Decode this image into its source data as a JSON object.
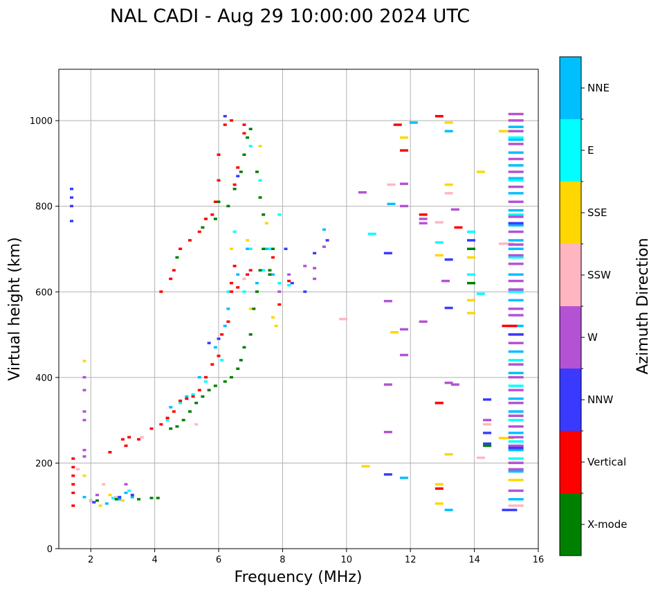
{
  "chart_data": {
    "type": "scatter",
    "title": "NAL CADI - Aug 29 10:00:00 2024 UTC",
    "xlabel": "Frequency (MHz)",
    "ylabel": "Virtual height (km)",
    "xlim": [
      1,
      16
    ],
    "ylim": [
      0,
      1120
    ],
    "xticks": [
      2,
      4,
      6,
      8,
      10,
      12,
      14,
      16
    ],
    "yticks": [
      0,
      200,
      400,
      600,
      800,
      1000
    ],
    "grid": true,
    "colorbar": {
      "label": "Azimuth Direction",
      "categories": [
        {
          "name": "X-mode",
          "color": "#008000"
        },
        {
          "name": "Vertical",
          "color": "#ff0000"
        },
        {
          "name": "NNW",
          "color": "#3a3aff"
        },
        {
          "name": "W",
          "color": "#b452d4"
        },
        {
          "name": "SSW",
          "color": "#ffb6c1"
        },
        {
          "name": "SSE",
          "color": "#ffd700"
        },
        {
          "name": "E",
          "color": "#00ffff"
        },
        {
          "name": "NNE",
          "color": "#00bfff"
        }
      ]
    },
    "series": [
      {
        "name": "NNE",
        "points": [
          [
            1.8,
            120
          ],
          [
            2.5,
            105
          ],
          [
            2.9,
            115
          ],
          [
            3.1,
            130
          ],
          [
            3.3,
            120
          ],
          [
            4.5,
            330
          ],
          [
            5.0,
            355
          ],
          [
            5.4,
            400
          ],
          [
            5.9,
            470
          ],
          [
            6.2,
            520
          ],
          [
            6.3,
            560
          ],
          [
            6.6,
            640
          ],
          [
            6.9,
            700
          ],
          [
            7.2,
            620
          ],
          [
            7.5,
            700
          ],
          [
            7.7,
            640
          ],
          [
            9.3,
            745
          ],
          [
            11.4,
            805
          ],
          [
            11.8,
            165
          ],
          [
            12.1,
            995
          ],
          [
            13.2,
            975
          ],
          [
            13.2,
            90
          ],
          [
            15.3,
            985
          ],
          [
            15.3,
            955
          ],
          [
            15.3,
            925
          ],
          [
            15.3,
            895
          ],
          [
            15.3,
            865
          ],
          [
            15.3,
            830
          ],
          [
            15.3,
            790
          ],
          [
            15.3,
            755
          ],
          [
            15.3,
            720
          ],
          [
            15.3,
            700
          ],
          [
            15.3,
            640
          ],
          [
            15.3,
            580
          ],
          [
            15.3,
            520
          ],
          [
            15.3,
            460
          ],
          [
            15.3,
            410
          ],
          [
            15.3,
            350
          ],
          [
            15.3,
            320
          ],
          [
            15.3,
            270
          ],
          [
            15.3,
            230
          ],
          [
            15.3,
            180
          ],
          [
            15.3,
            115
          ]
        ]
      },
      {
        "name": "E",
        "points": [
          [
            2.0,
            112
          ],
          [
            2.7,
            118
          ],
          [
            3.2,
            135
          ],
          [
            4.4,
            300
          ],
          [
            4.8,
            340
          ],
          [
            5.2,
            360
          ],
          [
            5.6,
            390
          ],
          [
            6.1,
            440
          ],
          [
            6.3,
            600
          ],
          [
            6.5,
            740
          ],
          [
            6.8,
            600
          ],
          [
            7.0,
            700
          ],
          [
            7.0,
            940
          ],
          [
            7.3,
            860
          ],
          [
            7.4,
            650
          ],
          [
            7.6,
            700
          ],
          [
            7.9,
            620
          ],
          [
            7.9,
            780
          ],
          [
            8.2,
            615
          ],
          [
            10.8,
            735
          ],
          [
            12.9,
            715
          ],
          [
            14.2,
            595
          ],
          [
            15.3,
            960
          ],
          [
            15.3,
            860
          ],
          [
            15.3,
            780
          ],
          [
            15.3,
            680
          ],
          [
            15.3,
            600
          ],
          [
            15.3,
            500
          ],
          [
            15.3,
            440
          ],
          [
            15.3,
            380
          ],
          [
            15.3,
            300
          ],
          [
            15.3,
            250
          ],
          [
            15.3,
            210
          ],
          [
            13.9,
            740
          ],
          [
            13.9,
            640
          ]
        ]
      },
      {
        "name": "SSE",
        "points": [
          [
            1.8,
            438
          ],
          [
            1.8,
            170
          ],
          [
            2.3,
            100
          ],
          [
            2.6,
            125
          ],
          [
            3.0,
            112
          ],
          [
            6.4,
            700
          ],
          [
            6.9,
            720
          ],
          [
            7.0,
            560
          ],
          [
            7.3,
            940
          ],
          [
            7.5,
            760
          ],
          [
            7.7,
            540
          ],
          [
            7.8,
            520
          ],
          [
            10.6,
            192
          ],
          [
            11.5,
            505
          ],
          [
            11.8,
            960
          ],
          [
            12.9,
            685
          ],
          [
            12.9,
            105
          ],
          [
            12.9,
            150
          ],
          [
            13.2,
            995
          ],
          [
            13.2,
            850
          ],
          [
            13.2,
            220
          ],
          [
            13.9,
            580
          ],
          [
            13.9,
            550
          ],
          [
            13.9,
            680
          ],
          [
            14.2,
            880
          ],
          [
            15.0,
            975
          ],
          [
            15.0,
            258
          ],
          [
            15.3,
            160
          ]
        ]
      },
      {
        "name": "SSW",
        "points": [
          [
            1.6,
            185
          ],
          [
            2.0,
            110
          ],
          [
            2.4,
            150
          ],
          [
            2.8,
            120
          ],
          [
            3.6,
            260
          ],
          [
            5.3,
            290
          ],
          [
            6.8,
            630
          ],
          [
            7.2,
            600
          ],
          [
            9.9,
            536
          ],
          [
            11.4,
            850
          ],
          [
            12.9,
            762
          ],
          [
            13.2,
            830
          ],
          [
            14.2,
            212
          ],
          [
            14.4,
            290
          ],
          [
            15.0,
            712
          ],
          [
            15.3,
            100
          ]
        ]
      },
      {
        "name": "W",
        "points": [
          [
            1.8,
            400
          ],
          [
            1.8,
            370
          ],
          [
            1.8,
            320
          ],
          [
            1.8,
            300
          ],
          [
            1.8,
            230
          ],
          [
            1.8,
            215
          ],
          [
            2.2,
            125
          ],
          [
            3.1,
            150
          ],
          [
            7.9,
            600
          ],
          [
            8.2,
            640
          ],
          [
            8.7,
            660
          ],
          [
            9.0,
            655
          ],
          [
            9.0,
            630
          ],
          [
            9.3,
            705
          ],
          [
            10.5,
            832
          ],
          [
            11.3,
            578
          ],
          [
            11.3,
            383
          ],
          [
            11.3,
            272
          ],
          [
            11.8,
            852
          ],
          [
            11.8,
            800
          ],
          [
            11.8,
            512
          ],
          [
            11.8,
            452
          ],
          [
            12.4,
            530
          ],
          [
            12.4,
            770
          ],
          [
            12.4,
            760
          ],
          [
            13.1,
            625
          ],
          [
            13.2,
            387
          ],
          [
            13.4,
            383
          ],
          [
            13.4,
            792
          ],
          [
            14.4,
            300
          ],
          [
            15.3,
            1015
          ],
          [
            15.3,
            1000
          ],
          [
            15.3,
            975
          ],
          [
            15.3,
            945
          ],
          [
            15.3,
            910
          ],
          [
            15.3,
            880
          ],
          [
            15.3,
            845
          ],
          [
            15.3,
            810
          ],
          [
            15.3,
            775
          ],
          [
            15.3,
            740
          ],
          [
            15.3,
            710
          ],
          [
            15.3,
            685
          ],
          [
            15.3,
            665
          ],
          [
            15.3,
            625
          ],
          [
            15.3,
            605
          ],
          [
            15.3,
            560
          ],
          [
            15.3,
            545
          ],
          [
            15.3,
            500
          ],
          [
            15.3,
            480
          ],
          [
            15.3,
            430
          ],
          [
            15.3,
            400
          ],
          [
            15.3,
            370
          ],
          [
            15.3,
            340
          ],
          [
            15.3,
            310
          ],
          [
            15.3,
            285
          ],
          [
            15.3,
            260
          ],
          [
            15.3,
            240
          ],
          [
            15.3,
            200
          ],
          [
            15.3,
            185
          ],
          [
            15.3,
            135
          ]
        ]
      },
      {
        "name": "NNW",
        "points": [
          [
            1.4,
            840
          ],
          [
            1.4,
            820
          ],
          [
            1.4,
            800
          ],
          [
            1.4,
            765
          ],
          [
            2.1,
            108
          ],
          [
            2.9,
            120
          ],
          [
            3.3,
            125
          ],
          [
            5.7,
            480
          ],
          [
            6.0,
            490
          ],
          [
            6.2,
            1010
          ],
          [
            6.6,
            870
          ],
          [
            8.1,
            700
          ],
          [
            8.3,
            620
          ],
          [
            8.7,
            600
          ],
          [
            9.0,
            690
          ],
          [
            9.4,
            720
          ],
          [
            11.3,
            690
          ],
          [
            11.3,
            173
          ],
          [
            12.9,
            340
          ],
          [
            13.2,
            675
          ],
          [
            13.2,
            562
          ],
          [
            13.9,
            700
          ],
          [
            13.9,
            720
          ],
          [
            14.4,
            348
          ],
          [
            14.4,
            270
          ],
          [
            14.4,
            245
          ],
          [
            15.1,
            90
          ],
          [
            15.3,
            760
          ],
          [
            15.3,
            500
          ],
          [
            15.3,
            235
          ]
        ]
      },
      {
        "name": "Vertical",
        "points": [
          [
            1.45,
            210
          ],
          [
            1.45,
            190
          ],
          [
            1.45,
            170
          ],
          [
            1.45,
            150
          ],
          [
            1.45,
            130
          ],
          [
            1.45,
            100
          ],
          [
            2.6,
            225
          ],
          [
            3.0,
            255
          ],
          [
            3.1,
            240
          ],
          [
            3.2,
            260
          ],
          [
            3.5,
            255
          ],
          [
            3.9,
            280
          ],
          [
            4.2,
            290
          ],
          [
            4.4,
            305
          ],
          [
            4.6,
            320
          ],
          [
            4.8,
            345
          ],
          [
            5.0,
            350
          ],
          [
            5.2,
            355
          ],
          [
            5.4,
            370
          ],
          [
            5.6,
            400
          ],
          [
            5.8,
            430
          ],
          [
            6.0,
            450
          ],
          [
            6.1,
            500
          ],
          [
            6.3,
            530
          ],
          [
            6.4,
            600
          ],
          [
            6.4,
            620
          ],
          [
            6.5,
            660
          ],
          [
            6.6,
            610
          ],
          [
            6.9,
            640
          ],
          [
            6.8,
            990
          ],
          [
            4.2,
            600
          ],
          [
            4.5,
            630
          ],
          [
            4.6,
            650
          ],
          [
            4.8,
            700
          ],
          [
            5.1,
            720
          ],
          [
            5.4,
            740
          ],
          [
            5.6,
            770
          ],
          [
            5.8,
            780
          ],
          [
            5.9,
            810
          ],
          [
            6.0,
            860
          ],
          [
            6.0,
            920
          ],
          [
            6.2,
            990
          ],
          [
            6.4,
            1000
          ],
          [
            6.5,
            850
          ],
          [
            6.6,
            890
          ],
          [
            6.8,
            970
          ],
          [
            7.0,
            650
          ],
          [
            7.7,
            680
          ],
          [
            7.9,
            570
          ],
          [
            8.2,
            625
          ],
          [
            11.6,
            990
          ],
          [
            11.8,
            930
          ],
          [
            12.4,
            780
          ],
          [
            12.9,
            1010
          ],
          [
            12.9,
            340
          ],
          [
            12.9,
            140
          ],
          [
            13.5,
            750
          ],
          [
            15.1,
            520
          ]
        ]
      },
      {
        "name": "X-mode",
        "points": [
          [
            2.2,
            112
          ],
          [
            2.8,
            115
          ],
          [
            3.5,
            115
          ],
          [
            3.9,
            118
          ],
          [
            4.1,
            118
          ],
          [
            4.5,
            280
          ],
          [
            4.7,
            285
          ],
          [
            4.9,
            300
          ],
          [
            5.1,
            320
          ],
          [
            5.3,
            340
          ],
          [
            5.5,
            355
          ],
          [
            5.7,
            370
          ],
          [
            5.9,
            380
          ],
          [
            6.2,
            390
          ],
          [
            6.4,
            400
          ],
          [
            6.6,
            420
          ],
          [
            6.7,
            440
          ],
          [
            6.8,
            470
          ],
          [
            7.0,
            500
          ],
          [
            7.1,
            560
          ],
          [
            7.2,
            600
          ],
          [
            7.3,
            650
          ],
          [
            7.4,
            700
          ],
          [
            7.6,
            650
          ],
          [
            4.7,
            680
          ],
          [
            5.5,
            750
          ],
          [
            5.9,
            770
          ],
          [
            6.0,
            810
          ],
          [
            6.3,
            800
          ],
          [
            6.5,
            840
          ],
          [
            6.7,
            880
          ],
          [
            6.8,
            920
          ],
          [
            6.9,
            960
          ],
          [
            7.0,
            980
          ],
          [
            7.2,
            880
          ],
          [
            7.3,
            820
          ],
          [
            7.4,
            780
          ],
          [
            7.6,
            640
          ],
          [
            7.7,
            700
          ],
          [
            14.4,
            240
          ],
          [
            13.9,
            620
          ],
          [
            13.9,
            700
          ]
        ]
      }
    ]
  }
}
